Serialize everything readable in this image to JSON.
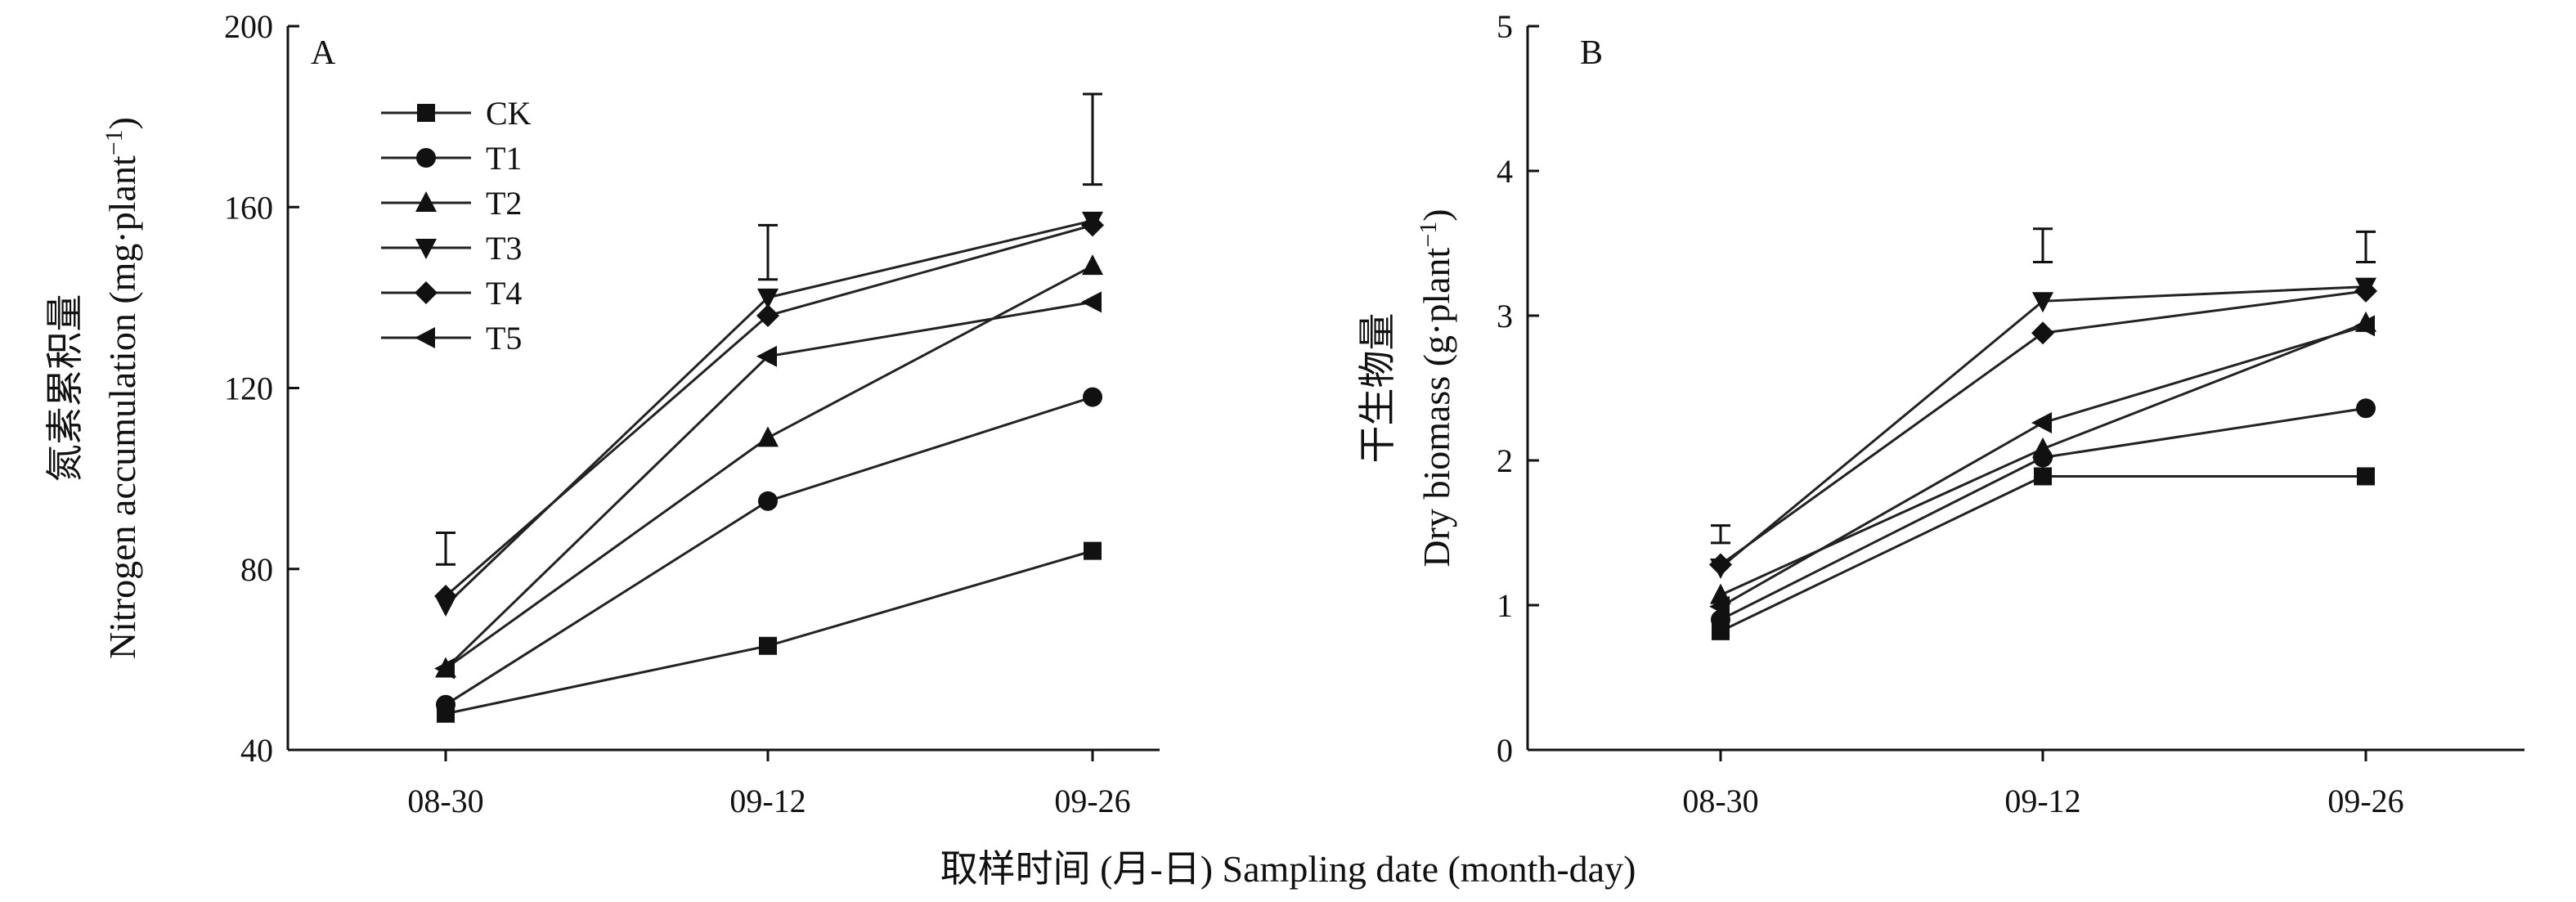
{
  "chart_data": [
    {
      "type": "line",
      "panel_label": "A",
      "categories": [
        "08-30",
        "09-12",
        "09-26"
      ],
      "ylabel_zh": "氮素累积量",
      "ylabel_en": "Nitrogen accumulation (mg·plant",
      "ylabel_sup": "−1",
      "ylabel_close": ")",
      "ylim": [
        40,
        200
      ],
      "yticks": [
        "40",
        "80",
        "120",
        "160",
        "200"
      ],
      "legend_placement": "top-left",
      "series": [
        {
          "name": "CK",
          "marker": "square",
          "values": [
            48,
            63,
            84
          ]
        },
        {
          "name": "T1",
          "marker": "circle",
          "values": [
            50,
            95,
            118
          ]
        },
        {
          "name": "T2",
          "marker": "triangle-up",
          "values": [
            58,
            109,
            147
          ]
        },
        {
          "name": "T3",
          "marker": "triangle-down",
          "values": [
            72,
            140,
            157
          ]
        },
        {
          "name": "T4",
          "marker": "diamond",
          "values": [
            74,
            136,
            156
          ]
        },
        {
          "name": "T5",
          "marker": "triangle-left",
          "values": [
            58,
            127,
            139
          ]
        }
      ],
      "error_bars": [
        {
          "x": "08-30",
          "low": 81,
          "high": 88
        },
        {
          "x": "09-12",
          "low": 144,
          "high": 156
        },
        {
          "x": "09-26",
          "low": 165,
          "high": 185
        }
      ]
    },
    {
      "type": "line",
      "panel_label": "B",
      "categories": [
        "08-30",
        "09-12",
        "09-26"
      ],
      "ylabel_zh": "干生物量",
      "ylabel_en": "Dry biomass (g·plant",
      "ylabel_sup": "−1",
      "ylabel_close": ")",
      "ylim": [
        0,
        5
      ],
      "yticks": [
        "0",
        "1",
        "2",
        "3",
        "4",
        "5"
      ],
      "series": [
        {
          "name": "CK",
          "marker": "square",
          "values": [
            0.82,
            1.89,
            1.89
          ]
        },
        {
          "name": "T1",
          "marker": "circle",
          "values": [
            0.9,
            2.02,
            2.36
          ]
        },
        {
          "name": "T2",
          "marker": "triangle-up",
          "values": [
            1.07,
            2.08,
            2.95
          ]
        },
        {
          "name": "T3",
          "marker": "triangle-down",
          "values": [
            1.26,
            3.1,
            3.2
          ]
        },
        {
          "name": "T4",
          "marker": "diamond",
          "values": [
            1.28,
            2.88,
            3.17
          ]
        },
        {
          "name": "T5",
          "marker": "triangle-left",
          "values": [
            0.99,
            2.26,
            2.93
          ]
        }
      ],
      "error_bars": [
        {
          "x": "08-30",
          "low": 1.43,
          "high": 1.55
        },
        {
          "x": "09-12",
          "low": 3.37,
          "high": 3.6
        },
        {
          "x": "09-26",
          "low": 3.37,
          "high": 3.58
        }
      ]
    }
  ],
  "shared": {
    "xlabel": "取样时间 (月-日) Sampling date (month-day)"
  }
}
